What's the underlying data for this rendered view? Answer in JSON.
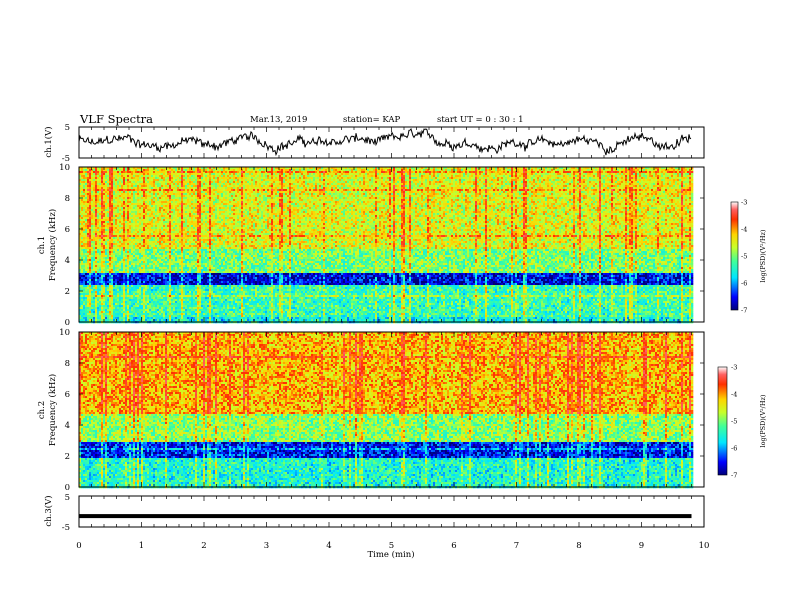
{
  "header": {
    "title": "VLF Spectra",
    "date": "Mar.13, 2019",
    "station": "station= KAP",
    "start_ut": "start  UT =   0  : 30 : 1"
  },
  "chart_data": [
    {
      "type": "line",
      "name": "ch1-waveform",
      "ylabel": "ch.1(V)",
      "ylim": [
        -5,
        5
      ],
      "yticks": [
        "5",
        "-5"
      ],
      "xlim": [
        0,
        10
      ],
      "series": [
        {
          "description_free": true,
          "mean": 0,
          "amplitude": 1.8
        }
      ]
    },
    {
      "type": "heatmap",
      "name": "ch1-spectrogram",
      "ylabel_lines": [
        "ch.1",
        "Frequency (kHz)"
      ],
      "ylim": [
        0,
        10
      ],
      "yticks": [
        "0",
        "2",
        "4",
        "6",
        "8",
        "10"
      ],
      "xlim": [
        0,
        9.8
      ],
      "colorbar": {
        "label": "log(PSD)(V²/Hz)",
        "range": [
          -7,
          -3
        ],
        "ticks": [
          "-3",
          "-4",
          "-5",
          "-6",
          "-7"
        ]
      },
      "bands": [
        {
          "f": [
            0,
            0.4
          ],
          "level": 0.35
        },
        {
          "f": [
            0.4,
            2.4
          ],
          "level": 0.42
        },
        {
          "f": [
            2.4,
            3.2
          ],
          "level": 0.1
        },
        {
          "f": [
            3.2,
            4.8
          ],
          "level": 0.5
        },
        {
          "f": [
            4.8,
            10
          ],
          "level": 0.62
        }
      ]
    },
    {
      "type": "heatmap",
      "name": "ch2-spectrogram",
      "ylabel_lines": [
        "ch.2",
        "Frequency (kHz)"
      ],
      "ylim": [
        0,
        10
      ],
      "yticks": [
        "0",
        "2",
        "4",
        "6",
        "8",
        "10"
      ],
      "xlim": [
        0,
        9.8
      ],
      "colorbar": {
        "label": "log(PSD)(V²/Hz)",
        "range": [
          -7,
          -3
        ],
        "ticks": [
          "-3",
          "-4",
          "-5",
          "-6",
          "-7"
        ]
      },
      "bands": [
        {
          "f": [
            0,
            2.0
          ],
          "level": 0.38
        },
        {
          "f": [
            2.0,
            3.0
          ],
          "level": 0.12
        },
        {
          "f": [
            3.0,
            4.8
          ],
          "level": 0.52
        },
        {
          "f": [
            4.8,
            10
          ],
          "level": 0.72
        }
      ]
    },
    {
      "type": "line",
      "name": "ch3-trace",
      "ylabel": "ch.3(V)",
      "ylim": [
        -5,
        5
      ],
      "yticks": [
        "5",
        "-5"
      ],
      "xlim": [
        0,
        10
      ],
      "series": [
        {
          "constant": -1.5
        }
      ]
    }
  ],
  "xaxis": {
    "label": "Time  (min)",
    "ticks": [
      "0",
      "1",
      "2",
      "3",
      "4",
      "5",
      "6",
      "7",
      "8",
      "9",
      "10"
    ]
  }
}
